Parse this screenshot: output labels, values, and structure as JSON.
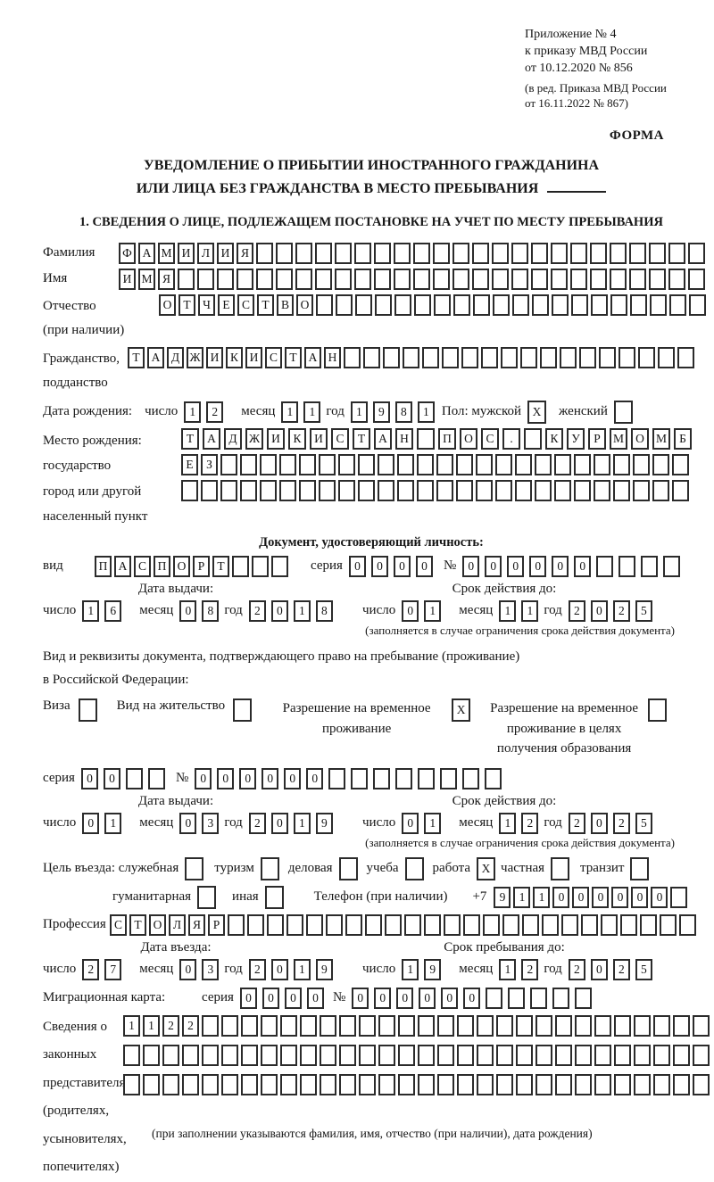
{
  "colors": {
    "ink": "#161616",
    "box_border": "#2b2b2b",
    "background": "#ffffff"
  },
  "page": {
    "appendix": [
      "Приложение № 4",
      "к приказу МВД России",
      "от 10.12.2020 № 856"
    ],
    "amendment": [
      "(в ред. Приказа МВД России",
      "от 16.11.2022 № 867)"
    ],
    "forma": "ФОРМА",
    "title1": "УВЕДОМЛЕНИЕ О ПРИБЫТИИ ИНОСТРАННОГО ГРАЖДАНИНА",
    "title2": "ИЛИ ЛИЦА БЕЗ ГРАЖДАНСТВА В МЕСТО ПРЕБЫВАНИЯ",
    "section1_title": "1. СВЕДЕНИЯ О ЛИЦЕ, ПОДЛЕЖАЩЕМ ПОСТАНОВКЕ НА УЧЕТ ПО МЕСТУ ПРЕБЫВАНИЯ"
  },
  "labels": {
    "surname": "Фамилия",
    "name": "Имя",
    "patronymic": "Отчество",
    "patronymic2": "(при наличии)",
    "citizenship": "Гражданство,",
    "citizenship2": "подданство",
    "birthdate": "Дата рождения:",
    "day": "число",
    "month": "месяц",
    "year": "год",
    "sex_male": "Пол: мужской",
    "sex_female": "женский",
    "birthplace": "Место рождения:",
    "birthplace2": "государство",
    "birthplace3": "город или другой",
    "birthplace4": "населенный пункт",
    "iddoc_header": "Документ, удостоверяющий личность:",
    "doc_type": "вид",
    "series": "серия",
    "number": "№",
    "issue_date": "Дата выдачи:",
    "valid_until": "Срок действия до:",
    "valid_note": "(заполняется в случае ограничения срока действия документа)",
    "permit_line1": "Вид и реквизиты документа, подтверждающего право на пребывание (проживание)",
    "permit_line2": "в Российской Федерации:",
    "visa": "Виза",
    "residence_permit": "Вид на жительство",
    "temp_permit": "Разрешение на временное проживание",
    "temp_permit_edu": "Разрешение на временное проживание в целях получения образования",
    "purpose": "Цель въезда: служебная",
    "tourism": "туризм",
    "business": "деловая",
    "study": "учеба",
    "work": "работа",
    "private": "частная",
    "transit": "транзит",
    "humanitarian": "гуманитарная",
    "other": "иная",
    "phone": "Телефон (при наличии)",
    "phone_prefix": "+7",
    "profession": "Профессия",
    "entry_date": "Дата въезда:",
    "stay_until": "Срок пребывания до:",
    "migration_card": "Миграционная карта:",
    "reps": [
      "Сведения о",
      "законных",
      "представителях",
      "(родителях,",
      "усыновителях,",
      "попечителях)"
    ],
    "reps_note": "(при заполнении указываются фамилия, имя, отчество (при наличии), дата рождения)"
  },
  "fields": {
    "surname": {
      "value": "ФАМИЛИЯ",
      "total": 30
    },
    "name": {
      "value": "ИМЯ",
      "total": 30
    },
    "patronymic": {
      "value": "ОТЧЕСТВО",
      "total": 28
    },
    "citizenship": {
      "value": "ТАДЖИКИСТАН",
      "total": 29
    },
    "birth_day": {
      "value": "12"
    },
    "birth_month": {
      "value": "11"
    },
    "birth_year": {
      "value": "1981"
    },
    "sex_male_cb": {
      "value": "X"
    },
    "sex_female_cb": {
      "value": "",
      "total": 1
    },
    "birthplace1": {
      "value": "ТАДЖИКИСТАН ПОС. КУРМОМБ",
      "total": 24
    },
    "birthplace2": {
      "value": "ЕЗ",
      "total": 26
    },
    "birthplace3": {
      "value": "",
      "total": 26
    },
    "doc_type": {
      "value": "ПАСПОРТ",
      "total": 10
    },
    "doc_series": {
      "value": "0000",
      "total": 4
    },
    "doc_number": {
      "value": "000000",
      "total": 10
    },
    "doc_issue_day": {
      "value": "16"
    },
    "doc_issue_month": {
      "value": "08"
    },
    "doc_issue_year": {
      "value": "2018"
    },
    "doc_valid_day": {
      "value": "01"
    },
    "doc_valid_month": {
      "value": "11"
    },
    "doc_valid_year": {
      "value": "2025"
    },
    "visa_cb": {
      "value": "",
      "total": 1
    },
    "residence_cb": {
      "value": "",
      "total": 1
    },
    "temp_permit_cb": {
      "value": "X"
    },
    "temp_permit_edu_cb": {
      "value": "",
      "total": 1
    },
    "permit_series": {
      "value": "00",
      "total": 4
    },
    "permit_number": {
      "value": "000000",
      "total": 14
    },
    "permit_issue_day": {
      "value": "01"
    },
    "permit_issue_month": {
      "value": "03"
    },
    "permit_issue_year": {
      "value": "2019"
    },
    "permit_valid_day": {
      "value": "01"
    },
    "permit_valid_month": {
      "value": "12"
    },
    "permit_valid_year": {
      "value": "2025"
    },
    "purpose_official_cb": {
      "value": "",
      "total": 1
    },
    "purpose_tourism_cb": {
      "value": "",
      "total": 1
    },
    "purpose_business_cb": {
      "value": "",
      "total": 1
    },
    "purpose_study_cb": {
      "value": "",
      "total": 1
    },
    "purpose_work_cb": {
      "value": "X"
    },
    "purpose_private_cb": {
      "value": "",
      "total": 1
    },
    "purpose_transit_cb": {
      "value": "",
      "total": 1
    },
    "purpose_humanitarian_cb": {
      "value": "",
      "total": 1
    },
    "purpose_other_cb": {
      "value": "",
      "total": 1
    },
    "phone": {
      "value": "911000000",
      "total": 10
    },
    "profession": {
      "value": "СТОЛЯР",
      "total": 30
    },
    "entry_day": {
      "value": "27"
    },
    "entry_month": {
      "value": "03"
    },
    "entry_year": {
      "value": "2019"
    },
    "stay_day": {
      "value": "19"
    },
    "stay_month": {
      "value": "12"
    },
    "stay_year": {
      "value": "2025"
    },
    "mig_series": {
      "value": "0000",
      "total": 4
    },
    "mig_number": {
      "value": "000000",
      "total": 11
    },
    "reps1": {
      "value": "1122",
      "total": 30
    },
    "reps2": {
      "value": "",
      "total": 30
    },
    "reps3": {
      "value": "",
      "total": 30
    }
  }
}
